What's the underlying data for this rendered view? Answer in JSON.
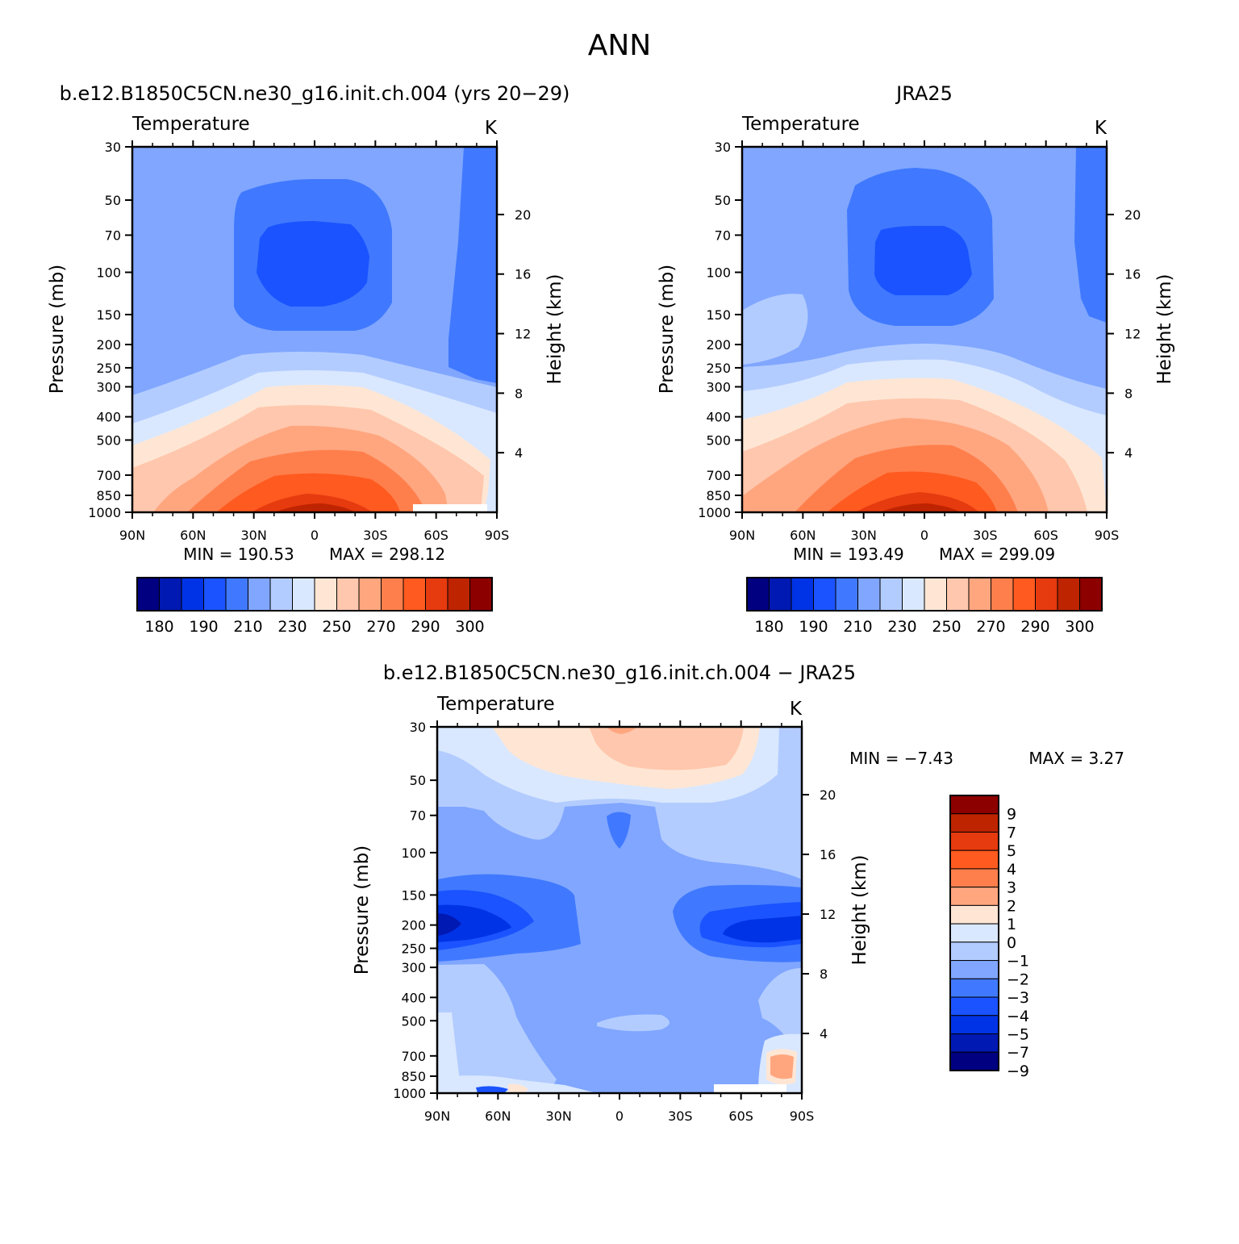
{
  "figure": {
    "title": "ANN"
  },
  "colors": {
    "temp_palette": [
      "#000080",
      "#0019b3",
      "#0033e6",
      "#1a53ff",
      "#4079ff",
      "#80a6ff",
      "#b3ccff",
      "#d9e8ff",
      "#ffe6d4",
      "#ffc7ad",
      "#ffa67f",
      "#ff7f4c",
      "#ff5a1f",
      "#e63a0f",
      "#bf2400",
      "#8c0000"
    ],
    "diff_palette": [
      "#8c0000",
      "#bf2400",
      "#e63a0f",
      "#ff5a1f",
      "#ff7f4c",
      "#ffa67f",
      "#ffe6d4",
      "#d9e8ff",
      "#b3ccff",
      "#80a6ff",
      "#4079ff",
      "#1a53ff",
      "#0033e6",
      "#0019b3",
      "#000080"
    ]
  },
  "chart_data": [
    {
      "id": "model",
      "type": "heatmap",
      "title": "b.e12.B1850C5CN.ne30_g16.init.ch.004 (yrs 20−29)",
      "variable": "Temperature",
      "units": "K",
      "xlabel": "",
      "ylabel": "Pressure (mb)",
      "y2label": "Height (km)",
      "x_ticks": [
        "90N",
        "60N",
        "30N",
        "0",
        "30S",
        "60S",
        "90S"
      ],
      "y_ticks": [
        30,
        50,
        70,
        100,
        150,
        200,
        250,
        300,
        400,
        500,
        700,
        850,
        1000
      ],
      "y_scale": "log",
      "y2_ticks": [
        20,
        16,
        12,
        8,
        4
      ],
      "min_label": "MIN =  190.53",
      "max_label": "MAX =  298.12",
      "min": 190.53,
      "max": 298.12,
      "colorbar_labels": [
        "180",
        "190",
        "210",
        "230",
        "250",
        "270",
        "290",
        "300"
      ],
      "colorbar_orientation": "horizontal"
    },
    {
      "id": "obs",
      "type": "heatmap",
      "title": "JRA25",
      "variable": "Temperature",
      "units": "K",
      "xlabel": "",
      "ylabel": "Pressure (mb)",
      "y2label": "Height (km)",
      "x_ticks": [
        "90N",
        "60N",
        "30N",
        "0",
        "30S",
        "60S",
        "90S"
      ],
      "y_ticks": [
        30,
        50,
        70,
        100,
        150,
        200,
        250,
        300,
        400,
        500,
        700,
        850,
        1000
      ],
      "y_scale": "log",
      "y2_ticks": [
        20,
        16,
        12,
        8,
        4
      ],
      "min_label": "MIN =  193.49",
      "max_label": "MAX =  299.09",
      "min": 193.49,
      "max": 299.09,
      "colorbar_labels": [
        "180",
        "190",
        "210",
        "230",
        "250",
        "270",
        "290",
        "300"
      ],
      "colorbar_orientation": "horizontal"
    },
    {
      "id": "diff",
      "type": "heatmap",
      "title": "b.e12.B1850C5CN.ne30_g16.init.ch.004 − JRA25",
      "variable": "Temperature",
      "units": "K",
      "xlabel": "",
      "ylabel": "Pressure (mb)",
      "y2label": "Height (km)",
      "x_ticks": [
        "90N",
        "60N",
        "30N",
        "0",
        "30S",
        "60S",
        "90S"
      ],
      "y_ticks": [
        30,
        50,
        70,
        100,
        150,
        200,
        250,
        300,
        400,
        500,
        700,
        850,
        1000
      ],
      "y_scale": "log",
      "y2_ticks": [
        20,
        16,
        12,
        8,
        4
      ],
      "min_label": "MIN =   −7.43",
      "max_label": "MAX =    3.27",
      "min": -7.43,
      "max": 3.27,
      "colorbar_labels": [
        "9",
        "7",
        "5",
        "4",
        "3",
        "2",
        "1",
        "0",
        "−1",
        "−2",
        "−3",
        "−4",
        "−5",
        "−7",
        "−9"
      ],
      "colorbar_orientation": "vertical"
    }
  ]
}
